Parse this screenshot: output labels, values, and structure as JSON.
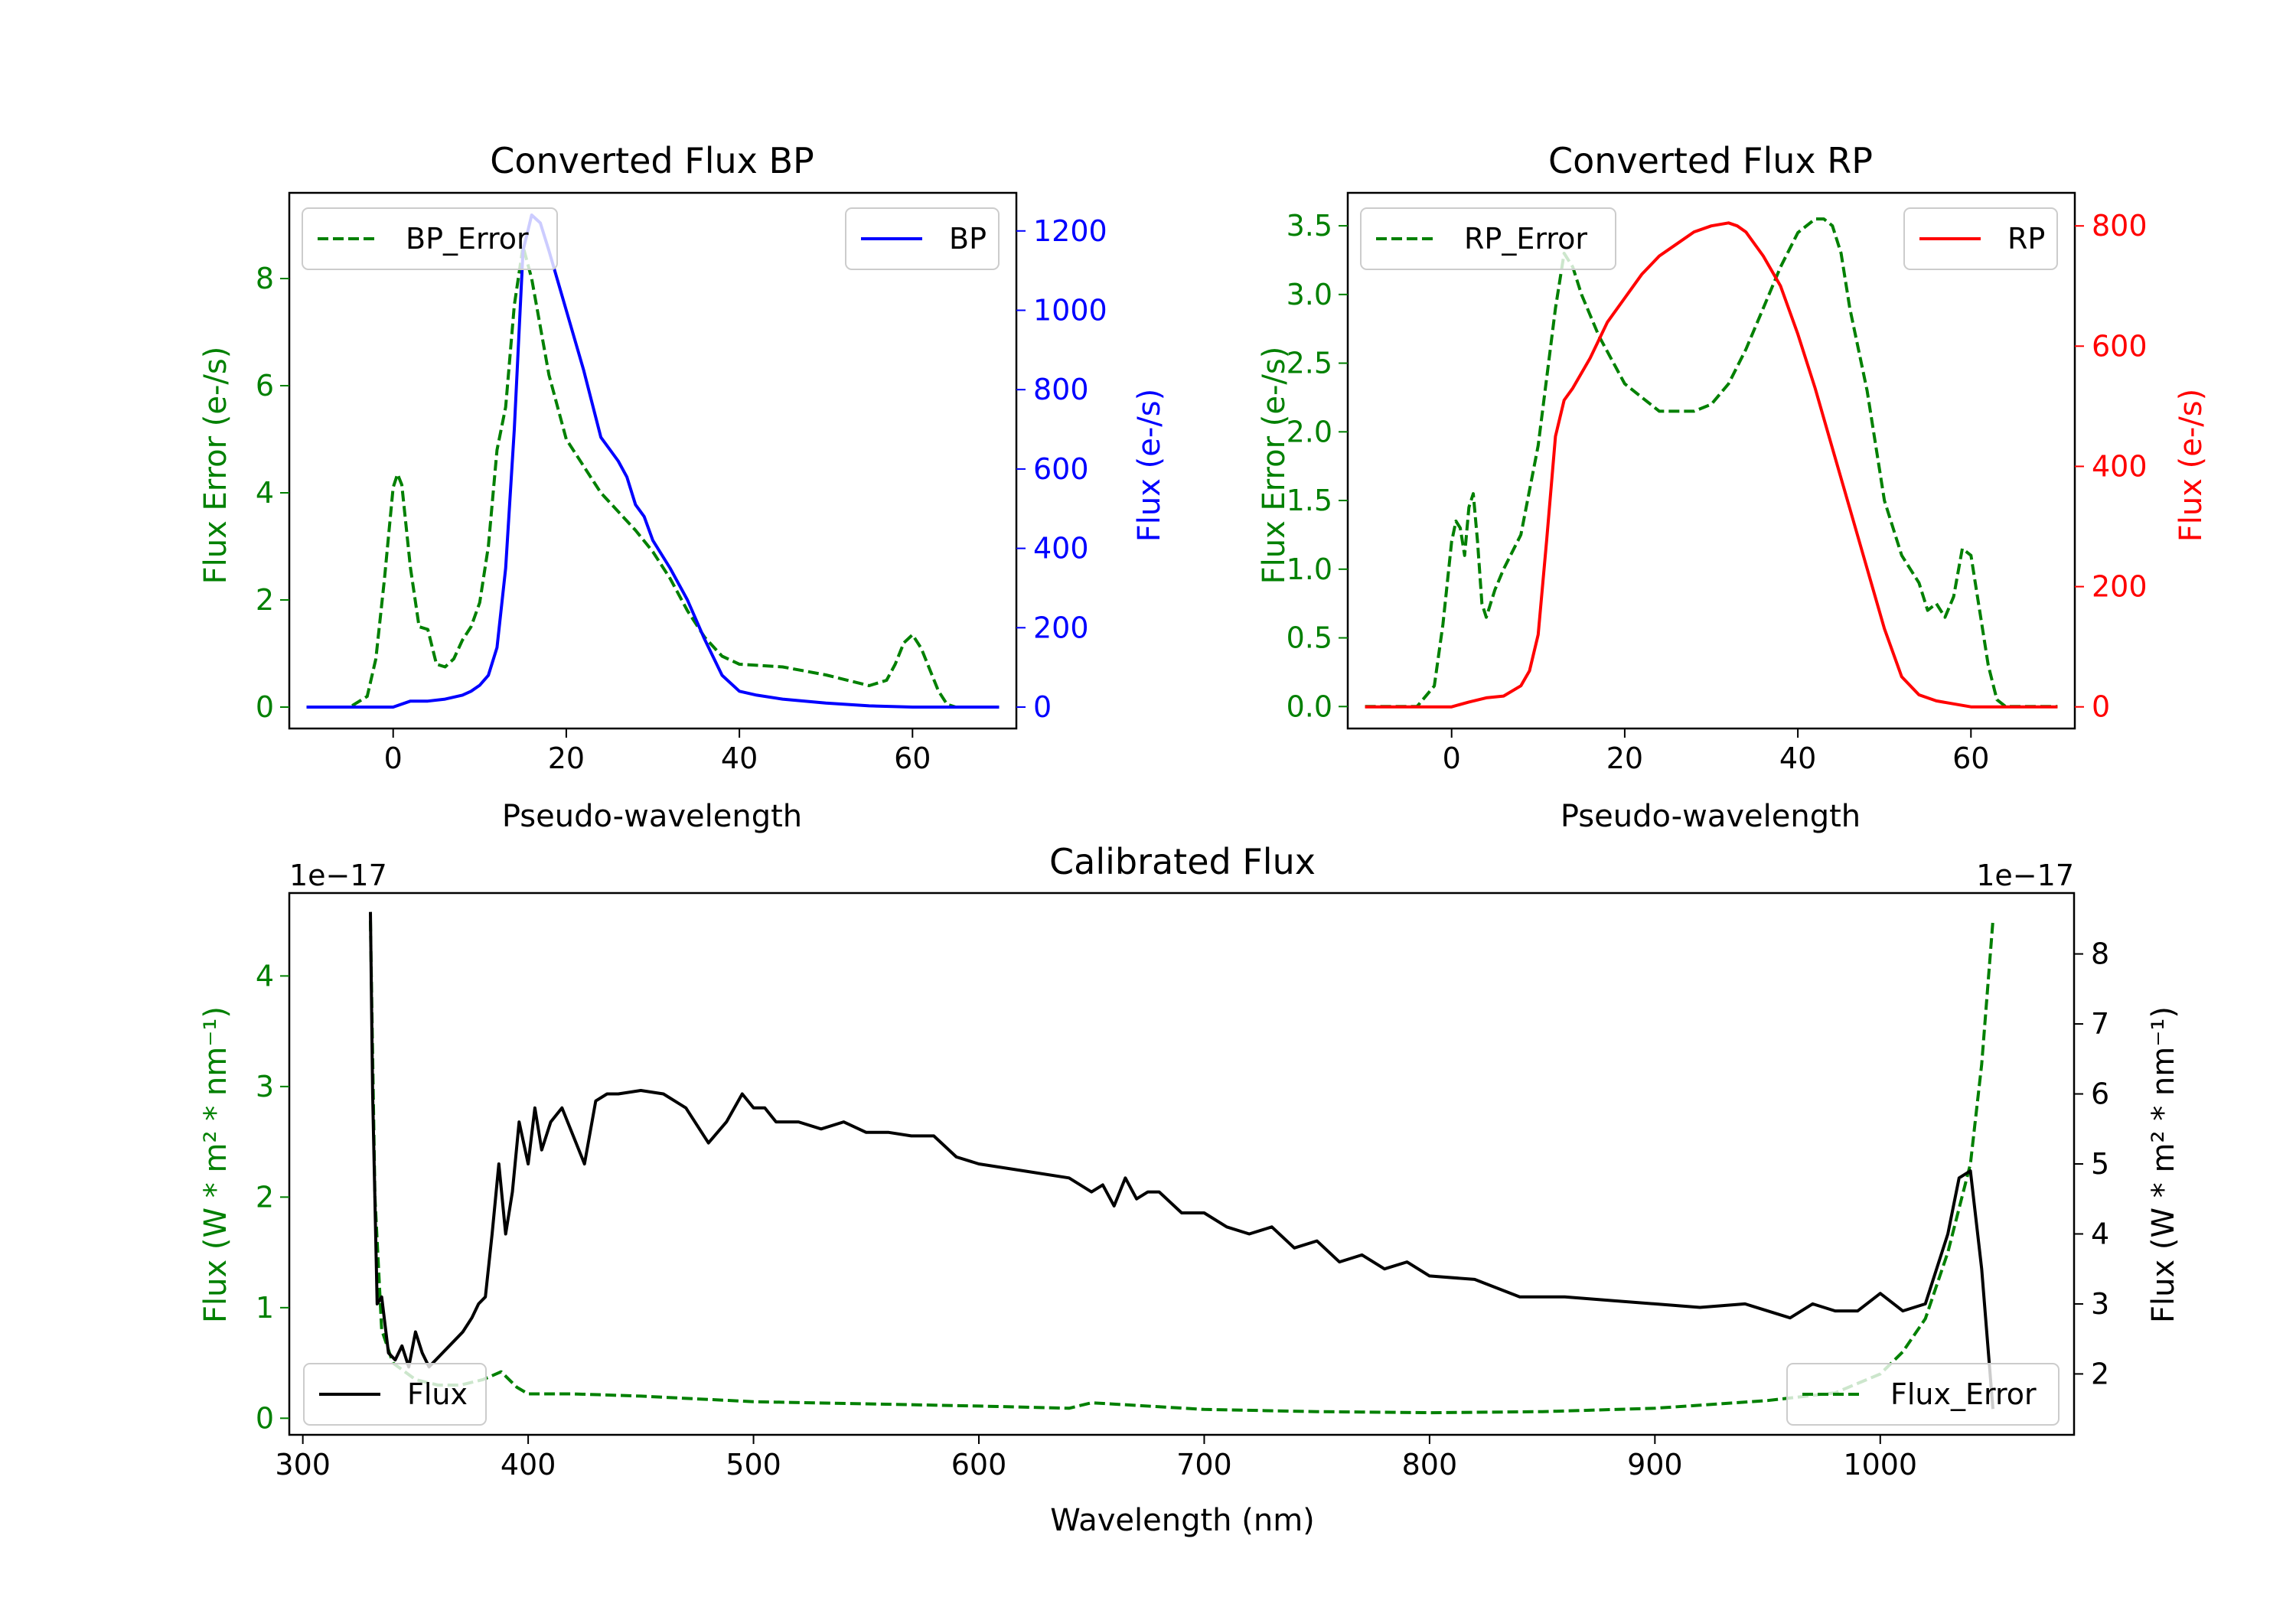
{
  "chart_data": [
    {
      "type": "line",
      "title": "Converted Flux BP",
      "xlabel": "Pseudo-wavelength",
      "ylabel_left": "Flux Error (e-/s)",
      "ylabel_right": "Flux (e-/s)",
      "xlim": [
        -12,
        72
      ],
      "ylim_left": [
        -0.4,
        9.6
      ],
      "ylim_right": [
        -54,
        1296
      ],
      "xticks": [
        0,
        20,
        40,
        60
      ],
      "yticks_left": [
        0,
        2,
        4,
        6,
        8
      ],
      "yticks_right": [
        0,
        200,
        400,
        600,
        800,
        1000,
        1200
      ],
      "colors": {
        "left_axis": "#008000",
        "right_axis": "#0000ff",
        "error": "#008000",
        "flux": "#0000ff"
      },
      "legend_left": "BP_Error",
      "legend_right": "BP",
      "series": [
        {
          "name": "BP_Error",
          "axis": "left",
          "style": "dashed",
          "x": [
            -10,
            -5,
            -3,
            -2,
            -1,
            0,
            0.5,
            1,
            2,
            3,
            4,
            5,
            6,
            7,
            8,
            9,
            10,
            11,
            12,
            13,
            14,
            15,
            16,
            18,
            20,
            24,
            28,
            30,
            32,
            34,
            36,
            38,
            40,
            45,
            50,
            55,
            57,
            58,
            59,
            60,
            61,
            62,
            63,
            64,
            65,
            66,
            68,
            70
          ],
          "y": [
            0,
            0,
            0.2,
            0.9,
            2.4,
            4.1,
            4.35,
            4.15,
            2.6,
            1.5,
            1.45,
            0.8,
            0.75,
            0.9,
            1.25,
            1.5,
            1.95,
            3.0,
            4.8,
            5.6,
            7.5,
            8.6,
            8.0,
            6.2,
            5.0,
            4.0,
            3.3,
            2.9,
            2.4,
            1.8,
            1.3,
            0.95,
            0.8,
            0.75,
            0.6,
            0.4,
            0.5,
            0.8,
            1.2,
            1.35,
            1.1,
            0.7,
            0.3,
            0.05,
            0,
            0,
            0,
            0
          ]
        },
        {
          "name": "BP",
          "axis": "right",
          "style": "solid",
          "x": [
            -10,
            -2,
            0,
            2,
            4,
            6,
            8,
            9,
            10,
            11,
            12,
            13,
            14,
            15,
            16,
            17,
            18,
            20,
            22,
            24,
            25,
            26,
            27,
            28,
            29,
            30,
            32,
            34,
            36,
            38,
            40,
            42,
            45,
            50,
            55,
            60,
            65,
            70
          ],
          "y": [
            0,
            0,
            0,
            15,
            15,
            20,
            30,
            40,
            55,
            80,
            150,
            350,
            700,
            1150,
            1240,
            1220,
            1150,
            1000,
            850,
            680,
            650,
            620,
            580,
            510,
            480,
            420,
            350,
            270,
            170,
            80,
            40,
            30,
            20,
            10,
            3,
            0,
            0,
            0
          ]
        }
      ]
    },
    {
      "type": "line",
      "title": "Converted Flux RP",
      "xlabel": "Pseudo-wavelength",
      "ylabel_left": "Flux Error (e-/s)",
      "ylabel_right": "Flux (e-/s)",
      "xlim": [
        -12,
        72
      ],
      "ylim_left": [
        -0.16,
        3.74
      ],
      "ylim_right": [
        -36,
        855
      ],
      "xticks": [
        0,
        20,
        40,
        60
      ],
      "yticks_left": [
        "0.0",
        "0.5",
        "1.0",
        "1.5",
        "2.0",
        "2.5",
        "3.0",
        "3.5"
      ],
      "yticks_right": [
        0,
        200,
        400,
        600,
        800
      ],
      "colors": {
        "left_axis": "#008000",
        "right_axis": "#ff0000",
        "error": "#008000",
        "flux": "#ff0000"
      },
      "legend_left": "RP_Error",
      "legend_right": "RP",
      "series": [
        {
          "name": "RP_Error",
          "axis": "left",
          "style": "dashed",
          "x": [
            -10,
            -4,
            -2,
            -1,
            0,
            0.5,
            1,
            1.5,
            2,
            2.5,
            3,
            3.5,
            4,
            5,
            6,
            8,
            10,
            12,
            13,
            14,
            15,
            17,
            20,
            24,
            28,
            30,
            32,
            34,
            36,
            38,
            40,
            42,
            43,
            44,
            45,
            46,
            48,
            50,
            52,
            54,
            55,
            56,
            57,
            58,
            59,
            60,
            61,
            62,
            63,
            64,
            66,
            70
          ],
          "y": [
            0,
            0,
            0.15,
            0.6,
            1.2,
            1.35,
            1.3,
            1.1,
            1.45,
            1.55,
            1.2,
            0.75,
            0.65,
            0.85,
            1.0,
            1.25,
            1.9,
            2.9,
            3.3,
            3.2,
            3.0,
            2.7,
            2.35,
            2.15,
            2.15,
            2.2,
            2.35,
            2.6,
            2.9,
            3.2,
            3.45,
            3.55,
            3.55,
            3.5,
            3.3,
            2.9,
            2.3,
            1.5,
            1.1,
            0.9,
            0.7,
            0.75,
            0.65,
            0.8,
            1.15,
            1.1,
            0.7,
            0.3,
            0.05,
            0,
            0,
            0
          ]
        },
        {
          "name": "RP",
          "axis": "right",
          "style": "solid",
          "x": [
            -10,
            -2,
            0,
            2,
            4,
            6,
            8,
            9,
            10,
            11,
            12,
            13,
            14,
            16,
            18,
            20,
            22,
            24,
            26,
            28,
            30,
            32,
            33,
            34,
            36,
            38,
            40,
            42,
            44,
            46,
            48,
            50,
            52,
            54,
            56,
            58,
            60,
            65,
            70
          ],
          "y": [
            0,
            0,
            0,
            8,
            15,
            18,
            35,
            60,
            120,
            280,
            450,
            510,
            530,
            580,
            640,
            680,
            720,
            750,
            770,
            790,
            800,
            805,
            800,
            790,
            750,
            700,
            620,
            530,
            430,
            330,
            230,
            130,
            50,
            20,
            10,
            5,
            0,
            0,
            0
          ]
        }
      ]
    },
    {
      "type": "line",
      "title": "Calibrated Flux",
      "xlabel": "Wavelength (nm)",
      "ylabel_left": "Flux (W * m² * nm⁻¹)",
      "ylabel_right": "Flux (W * m² * nm⁻¹)",
      "offset_left": "1e−17",
      "offset_right": "1e−17",
      "xlim": [
        294,
        1086
      ],
      "ylim_left": [
        -0.15,
        4.75
      ],
      "ylim_right": [
        1.13,
        8.87
      ],
      "xticks": [
        300,
        400,
        500,
        600,
        700,
        800,
        900,
        1000
      ],
      "yticks_left": [
        0,
        1,
        2,
        3,
        4
      ],
      "yticks_right": [
        2,
        3,
        4,
        5,
        6,
        7,
        8
      ],
      "colors": {
        "left_axis": "#008000",
        "right_axis": "#000000",
        "error": "#008000",
        "flux": "#000000"
      },
      "legend_left": "Flux",
      "legend_right": "Flux_Error",
      "series": [
        {
          "name": "Flux_Error",
          "axis": "left",
          "style": "dashed",
          "x": [
            330,
            332,
            335,
            340,
            350,
            360,
            370,
            380,
            388,
            395,
            400,
            420,
            450,
            480,
            500,
            550,
            600,
            640,
            650,
            700,
            750,
            800,
            850,
            900,
            950,
            980,
            1000,
            1010,
            1020,
            1030,
            1040,
            1045,
            1050
          ],
          "y": [
            4.5,
            2.0,
            0.8,
            0.5,
            0.35,
            0.3,
            0.3,
            0.35,
            0.42,
            0.28,
            0.22,
            0.22,
            0.2,
            0.17,
            0.15,
            0.13,
            0.11,
            0.09,
            0.14,
            0.08,
            0.06,
            0.05,
            0.06,
            0.09,
            0.16,
            0.23,
            0.4,
            0.6,
            0.9,
            1.5,
            2.3,
            3.2,
            4.5
          ]
        },
        {
          "name": "Flux",
          "axis": "right",
          "style": "solid",
          "x": [
            330,
            331,
            333,
            335,
            338,
            341,
            344,
            347,
            350,
            353,
            356,
            359,
            362,
            365,
            368,
            371,
            375,
            378,
            381,
            384,
            387,
            390,
            393,
            396,
            400,
            403,
            406,
            410,
            415,
            420,
            425,
            430,
            435,
            440,
            450,
            460,
            470,
            480,
            488,
            495,
            500,
            505,
            510,
            520,
            530,
            540,
            550,
            560,
            570,
            580,
            590,
            600,
            620,
            640,
            650,
            655,
            660,
            665,
            670,
            675,
            680,
            690,
            700,
            710,
            720,
            730,
            740,
            750,
            760,
            770,
            780,
            790,
            800,
            820,
            840,
            860,
            880,
            900,
            920,
            940,
            960,
            970,
            980,
            990,
            1000,
            1010,
            1020,
            1030,
            1035,
            1040,
            1045,
            1050
          ],
          "y": [
            8.6,
            6.0,
            3.0,
            3.1,
            2.3,
            2.2,
            2.4,
            2.1,
            2.6,
            2.3,
            2.1,
            2.2,
            2.3,
            2.4,
            2.5,
            2.6,
            2.8,
            3.0,
            3.1,
            4.0,
            5.0,
            4.0,
            4.6,
            5.6,
            5.0,
            5.8,
            5.2,
            5.6,
            5.8,
            5.4,
            5.0,
            5.9,
            6.0,
            6.0,
            6.05,
            6.0,
            5.8,
            5.3,
            5.6,
            6.0,
            5.8,
            5.8,
            5.6,
            5.6,
            5.5,
            5.6,
            5.45,
            5.45,
            5.4,
            5.4,
            5.1,
            5.0,
            4.9,
            4.8,
            4.6,
            4.7,
            4.4,
            4.8,
            4.5,
            4.6,
            4.6,
            4.3,
            4.3,
            4.1,
            4.0,
            4.1,
            3.8,
            3.9,
            3.6,
            3.7,
            3.5,
            3.6,
            3.4,
            3.35,
            3.1,
            3.1,
            3.05,
            3.0,
            2.95,
            3.0,
            2.8,
            3.0,
            2.9,
            2.9,
            3.15,
            2.9,
            3.0,
            4.0,
            4.8,
            4.9,
            3.5,
            1.5
          ]
        }
      ]
    }
  ]
}
